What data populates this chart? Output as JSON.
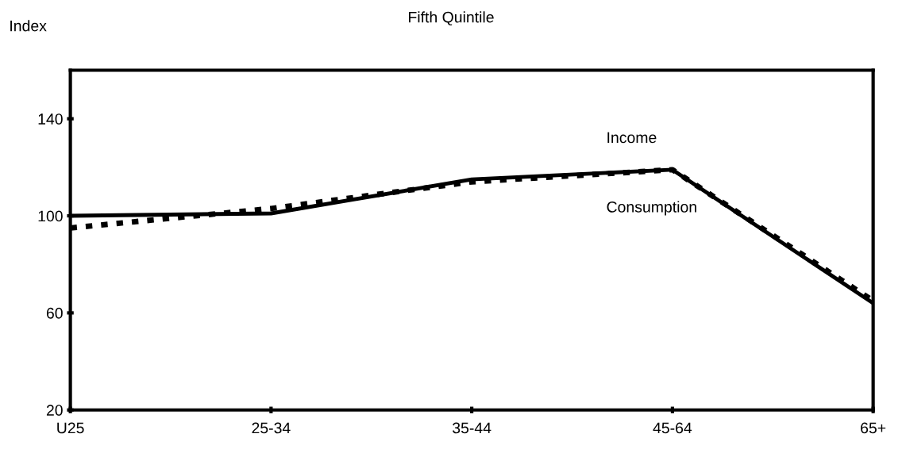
{
  "chart_data": {
    "type": "line",
    "title": "Fifth Quintile",
    "ylabel": "Index",
    "categories": [
      "U25",
      "25-34",
      "35-44",
      "45-64",
      "65+"
    ],
    "series": [
      {
        "name": "Income",
        "color": "#000000",
        "line_style": "solid",
        "values": [
          100,
          101,
          115,
          119,
          64
        ]
      },
      {
        "name": "Consumption",
        "color": "#000000",
        "line_style": "dashed",
        "values": [
          95,
          103,
          114,
          119,
          65
        ]
      }
    ],
    "ylim": [
      20,
      160
    ],
    "yticks": [
      20,
      60,
      100,
      140
    ],
    "grid": false,
    "legend": false,
    "marker": "none"
  }
}
